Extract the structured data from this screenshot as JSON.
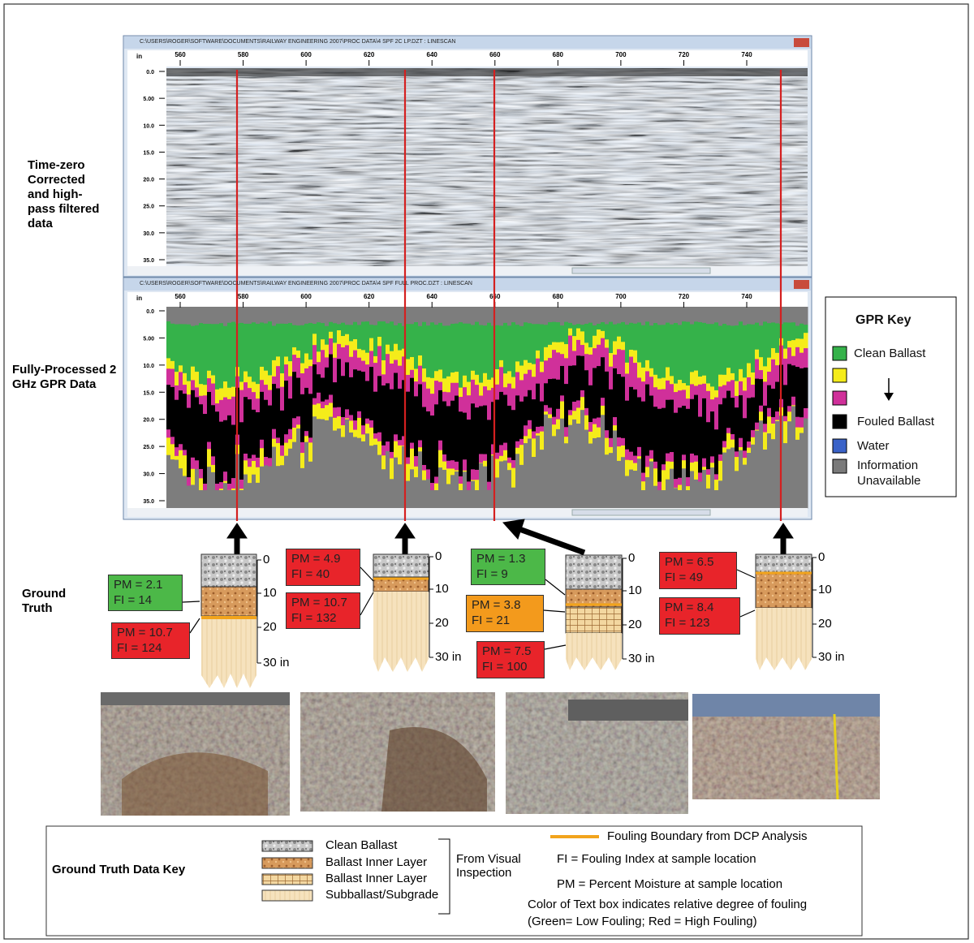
{
  "scans": [
    {
      "title": "C:\\USERS\\ROGER\\SOFTWARE\\DOCUMENTS\\RAILWAY ENGINEERING 2007\\PROC DATA\\4 SPF 2C LP.DZT : LINESCAN",
      "x_ticks": [
        560,
        580,
        600,
        620,
        640,
        660,
        680,
        700,
        720,
        740
      ],
      "y_unit": "in",
      "y_ticks": [
        "0.0",
        "5.00",
        "10.0",
        "15.0",
        "20.0",
        "25.0",
        "30.0",
        "35.0"
      ]
    },
    {
      "title": "C:\\USERS\\ROGER\\SOFTWARE\\DOCUMENTS\\RAILWAY ENGINEERING 2007\\PROC DATA\\4 SPF FULL PROC.DZT : LINESCAN",
      "x_ticks": [
        560,
        580,
        600,
        620,
        640,
        660,
        680,
        700,
        720,
        740
      ],
      "y_unit": "in",
      "y_ticks": [
        "0.0",
        "5.00",
        "10.0",
        "15.0",
        "20.0",
        "25.0",
        "30.0",
        "35.0"
      ]
    }
  ],
  "side_labels": {
    "raw": "Time-zero Corrected and high-pass filtered data",
    "processed": "Fully-Processed 2 GHz GPR Data",
    "ground_truth": "Ground Truth"
  },
  "gpr_key": {
    "title": "GPR Key",
    "items": [
      "Clean Ballast",
      "Fouled Ballast",
      "Water",
      "Information Unavailable"
    ]
  },
  "ground_truth": {
    "columns": [
      {
        "depth_labels": [
          "0",
          "10",
          "20",
          "30 in"
        ],
        "samples": [
          {
            "pm": "PM = 2.1",
            "fi": "FI = 14"
          },
          {
            "pm": "PM = 10.7",
            "fi": "FI = 124"
          }
        ]
      },
      {
        "depth_labels": [
          "0",
          "10",
          "20",
          "30 in"
        ],
        "samples": [
          {
            "pm": "PM = 4.9",
            "fi": "FI = 40"
          },
          {
            "pm": "PM = 10.7",
            "fi": "FI = 132"
          }
        ]
      },
      {
        "depth_labels": [
          "0",
          "10",
          "20",
          "30 in"
        ],
        "samples": [
          {
            "pm": "PM = 1.3",
            "fi": "FI = 9"
          },
          {
            "pm": "PM = 3.8",
            "fi": "FI = 21"
          },
          {
            "pm": "PM = 7.5",
            "fi": "FI = 100"
          }
        ]
      },
      {
        "depth_labels": [
          "0",
          "10",
          "20",
          "30 in"
        ],
        "samples": [
          {
            "pm": "PM = 6.5",
            "fi": "FI = 49"
          },
          {
            "pm": "PM = 8.4",
            "fi": "FI = 123"
          }
        ]
      }
    ]
  },
  "key": {
    "title": "Ground Truth Data Key",
    "layers": [
      "Clean Ballast",
      "Ballast Inner Layer",
      "Ballast Inner Layer",
      "Subballast/Subgrade"
    ],
    "visual": "From Visual Inspection",
    "boundary": "Fouling Boundary from DCP Analysis",
    "fi": "FI = Fouling Index at sample location",
    "pm": "PM = Percent Moisture at sample location",
    "color_note": "Color of Text box indicates relative degree of fouling",
    "color_legend": "(Green= Low Fouling; Red = High Fouling)"
  }
}
